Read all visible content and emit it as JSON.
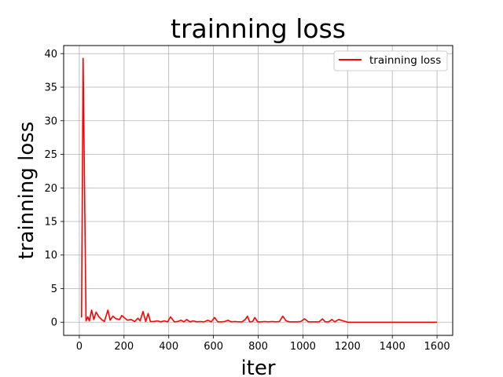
{
  "chart_data": {
    "type": "line",
    "title": "trainning loss",
    "xlabel": "iter",
    "ylabel": "trainning loss",
    "xlim": [
      -70,
      1670
    ],
    "ylim": [
      -1.96,
      41.2
    ],
    "xticks": [
      0,
      200,
      400,
      600,
      800,
      1000,
      1200,
      1400,
      1600
    ],
    "yticks": [
      0,
      5,
      10,
      15,
      20,
      25,
      30,
      35,
      40
    ],
    "grid": true,
    "legend_position": "top-right",
    "series": [
      {
        "name": "trainning loss",
        "color": "#ff0000",
        "x": [
          10,
          17,
          30,
          38,
          45,
          55,
          65,
          75,
          88,
          100,
          112,
          128,
          138,
          150,
          165,
          180,
          190,
          200,
          215,
          232,
          248,
          262,
          272,
          285,
          297,
          308,
          318,
          332,
          348,
          365,
          380,
          395,
          408,
          425,
          440,
          455,
          468,
          480,
          495,
          510,
          525,
          540,
          558,
          575,
          590,
          605,
          620,
          635,
          650,
          665,
          680,
          695,
          712,
          728,
          742,
          752,
          762,
          775,
          785,
          798,
          812,
          828,
          845,
          862,
          878,
          895,
          910,
          925,
          940,
          958,
          975,
          990,
          1008,
          1025,
          1040,
          1058,
          1072,
          1088,
          1100,
          1115,
          1130,
          1142,
          1160,
          1200,
          1300,
          1400,
          1500,
          1600
        ],
        "y": [
          0.7,
          39.3,
          0.2,
          0.8,
          0.2,
          1.8,
          0.4,
          1.5,
          0.8,
          0.4,
          0.1,
          1.8,
          0.3,
          0.9,
          0.5,
          0.4,
          1.0,
          0.7,
          0.3,
          0.4,
          0.1,
          0.6,
          0.2,
          1.6,
          0.1,
          1.3,
          0.1,
          0.1,
          0.2,
          0.05,
          0.2,
          0.05,
          0.8,
          0.05,
          0.1,
          0.3,
          0.05,
          0.4,
          0.05,
          0.2,
          0.05,
          0.1,
          0.05,
          0.3,
          0.05,
          0.7,
          0.05,
          0.05,
          0.1,
          0.3,
          0.05,
          0.1,
          0.05,
          0.05,
          0.4,
          0.9,
          0.05,
          0.1,
          0.7,
          0.05,
          0.05,
          0.1,
          0.05,
          0.1,
          0.05,
          0.1,
          0.9,
          0.2,
          0.05,
          0.05,
          0.05,
          0.1,
          0.5,
          0.05,
          0.05,
          0.05,
          0.05,
          0.5,
          0.05,
          0.05,
          0.4,
          0.05,
          0.4,
          0.0,
          0.0,
          0.0,
          0.0,
          0.0
        ]
      }
    ]
  }
}
